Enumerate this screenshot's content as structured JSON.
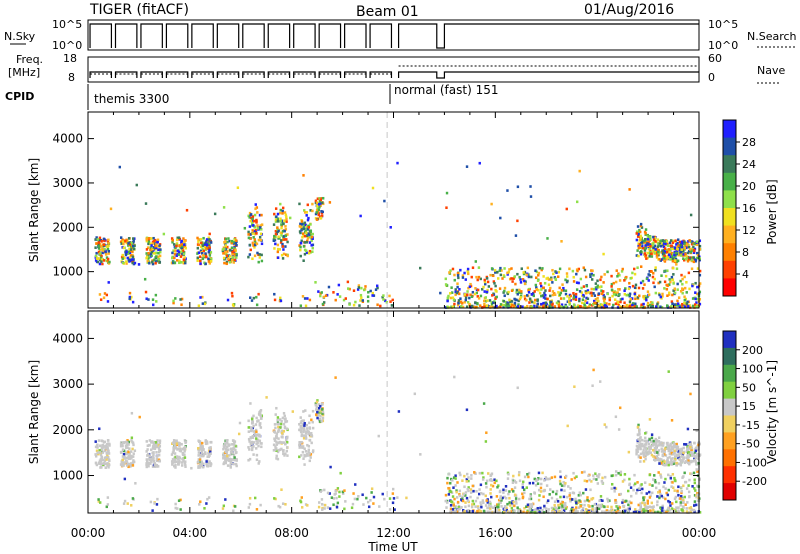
{
  "header": {
    "title": "TIGER (fitACF)",
    "beam": "Beam 01",
    "date": "01/Aug/2016"
  },
  "status_panels": {
    "nsky_label": "N.Sky",
    "nsearch_label": "N.Search",
    "freq_label_1": "Freq.",
    "freq_label_2": "[MHz]",
    "nave_label": "Nave",
    "cpid_label": "CPID",
    "left_ticks_top": [
      "10^5",
      "10^0"
    ],
    "right_ticks_top": [
      "10^5",
      "10^0"
    ],
    "left_ticks_freq": [
      "18",
      "8"
    ],
    "right_ticks_nave": [
      "60",
      "0"
    ],
    "cpid_segments": [
      {
        "label": "themis 3300",
        "start_hour": 0,
        "end_hour": 12.2
      },
      {
        "label": "normal (fast) 151",
        "start_hour": 12.2,
        "end_hour": 24
      }
    ]
  },
  "chart_data": [
    {
      "type": "heatmap",
      "name": "power",
      "ylabel": "Slant Range [km]",
      "xlabel": "Time UT",
      "x_ticks": [
        "00:00",
        "04:00",
        "08:00",
        "12:00",
        "16:00",
        "20:00",
        "00:00"
      ],
      "xlim_hours": [
        0,
        24
      ],
      "y_ticks": [
        1000,
        2000,
        3000,
        4000
      ],
      "ylim": [
        180,
        4600
      ],
      "colorbar": {
        "label": "Power [dB]",
        "ticks": [
          "4",
          "8",
          "12",
          "16",
          "20",
          "24",
          "28"
        ],
        "colors": [
          "#2020ff",
          "#1f4fa8",
          "#3a7a5a",
          "#48b048",
          "#8fe04a",
          "#f0e020",
          "#ffb020",
          "#ff8000",
          "#ff4000",
          "#ff0000"
        ]
      },
      "reference_line_hour": 11.75
    },
    {
      "type": "heatmap",
      "name": "velocity",
      "ylabel": "Slant Range [km]",
      "xlabel": "Time UT",
      "x_ticks": [
        "00:00",
        "04:00",
        "08:00",
        "12:00",
        "16:00",
        "20:00",
        "00:00"
      ],
      "xlim_hours": [
        0,
        24
      ],
      "y_ticks": [
        1000,
        2000,
        3000,
        4000
      ],
      "ylim": [
        180,
        4600
      ],
      "colorbar": {
        "label": "Velocity [m s^-1]",
        "ticks": [
          "200",
          "100",
          "50",
          "15",
          "-15",
          "-50",
          "-100",
          "-200"
        ],
        "colors": [
          "#2030c0",
          "#2e6e5e",
          "#4aa84a",
          "#80d040",
          "#c8c8c8",
          "#f0d060",
          "#ffa020",
          "#ff7000",
          "#ff3000",
          "#e00000"
        ]
      },
      "reference_line_hour": 11.75
    }
  ],
  "colors": {
    "axis": "#000000",
    "reference_line": "#c0c0c0"
  }
}
